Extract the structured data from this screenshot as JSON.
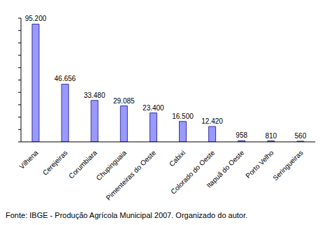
{
  "chart_data": {
    "type": "bar",
    "caption": "Fonte: IBGE - Produção Agrícola Municipal 2007. Organizado do autor.",
    "categories": [
      "Vilhena",
      "Cerejeiras",
      "Corumbiara",
      "Chupinguaia",
      "Pimenteiras do Oeste",
      "Cabixi",
      "Colorado do Oeste",
      "Itapuã do Oeste",
      "Porto Velho",
      "Seringueiras"
    ],
    "values": [
      95200,
      46656,
      33480,
      29085,
      23400,
      16500,
      12420,
      958,
      810,
      560
    ],
    "value_labels": [
      "95.200",
      "46.656",
      "33.480",
      "29.085",
      "23.400",
      "16.500",
      "12.420",
      "958",
      "810",
      "560"
    ],
    "color": "#9999ff",
    "ylim": [
      0,
      100000
    ],
    "yticks": [
      0,
      10000,
      20000,
      30000,
      40000,
      50000,
      60000,
      70000,
      80000,
      90000,
      100000
    ],
    "grid": false,
    "data_labels": true,
    "tick_labels": "x"
  }
}
